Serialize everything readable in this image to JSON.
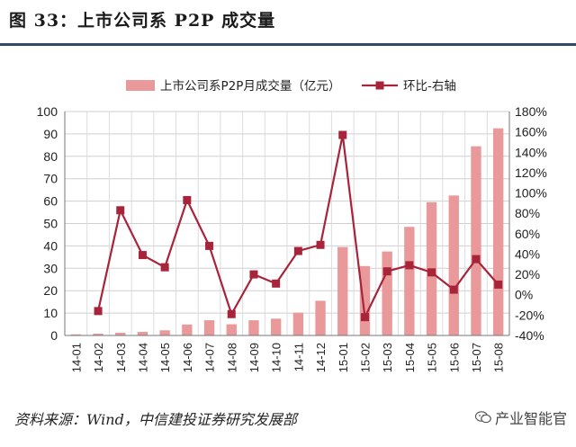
{
  "header": {
    "title": "图 33：上市公司系 P2P 成交量"
  },
  "source": "资料来源：Wind，中信建投证券研究发展部",
  "watermark": {
    "icon": "wechat-icon",
    "text": "产业智能官"
  },
  "colors": {
    "bar": "#e99999",
    "line": "#a8243a",
    "rule": "#2e4a66"
  },
  "chart_data": {
    "type": "bar",
    "title": "",
    "xlabel": "",
    "ylabel": "",
    "categories": [
      "14-01",
      "14-02",
      "14-03",
      "14-04",
      "14-05",
      "14-06",
      "14-07",
      "14-08",
      "14-09",
      "14-10",
      "14-11",
      "14-12",
      "15-01",
      "15-02",
      "15-03",
      "15-04",
      "15-05",
      "15-06",
      "15-07",
      "15-08"
    ],
    "series": [
      {
        "name": "上市公司系P2P月成交量（亿元）",
        "type": "bar",
        "axis": "left",
        "values": [
          0.5,
          0.8,
          1.2,
          1.6,
          2.3,
          4.9,
          6.8,
          5.0,
          6.8,
          7.5,
          10.2,
          15.5,
          39.5,
          31.0,
          37.5,
          48.5,
          59.5,
          62.5,
          84.5,
          92.5
        ]
      },
      {
        "name": "环比-右轴",
        "type": "line",
        "axis": "right",
        "values": [
          null,
          -16,
          83,
          39,
          27,
          93,
          48,
          -19,
          20,
          11,
          43,
          49,
          157,
          -22,
          23,
          29,
          22,
          5,
          35,
          10
        ]
      }
    ],
    "y_left": {
      "ylim": [
        0,
        100
      ],
      "ticks": [
        0,
        10,
        20,
        30,
        40,
        50,
        60,
        70,
        80,
        90,
        100
      ]
    },
    "y_right": {
      "ylim": [
        -40,
        180
      ],
      "ticks": [
        -40,
        -20,
        0,
        20,
        40,
        60,
        80,
        100,
        120,
        140,
        160,
        180
      ],
      "unit": "%"
    },
    "grid": true,
    "legend_position": "top"
  }
}
